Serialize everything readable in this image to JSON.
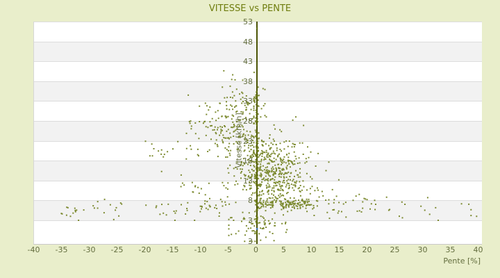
{
  "title": "VITESSE vs PENTE",
  "colors": {
    "background": "#e9eecb",
    "plot_background": "#ffffff",
    "band_stripe": "#f2f2f2",
    "gridline": "#dcdcdc",
    "title_text": "#6f7d0e",
    "label_text": "#646e3f",
    "axis_line": "#4b5404",
    "point": "#6b7b15",
    "special_point": "#4c7fc0"
  },
  "axes": {
    "x": {
      "title": "Pente [%]",
      "ticks": [
        -40,
        -35,
        -30,
        -25,
        -20,
        -15,
        -10,
        -5,
        0,
        5,
        10,
        15,
        20,
        25,
        30,
        35,
        40
      ],
      "range": [
        -40,
        40
      ]
    },
    "y": {
      "title": "Vitesse [km/h]",
      "ticks": [
        53,
        48,
        43,
        38,
        33,
        28,
        23,
        18,
        13,
        8,
        3
      ],
      "bottom_label": "3",
      "range_top": 53,
      "range_bottom": -2.9
    }
  },
  "chart_data": {
    "type": "scatter",
    "title": "VITESSE vs PENTE",
    "xlabel": "Pente [%]",
    "ylabel": "Vitesse [km/h]",
    "xlim": [
      -40,
      40
    ],
    "ylim": [
      -2.9,
      53
    ],
    "grid": "horizontal-bands",
    "legend": "none",
    "n_points_estimate": 1200,
    "description": "Dense olive scatter of speed vs slope, peaked near 0% slope; max speed falls off as |slope| grows; long sparse low-speed tails to -37% and +40%; vertical column of samples at 0% slope; one isolated point near (0,51).",
    "seed": 987654321,
    "clusters": [
      {
        "name": "core-blob",
        "n": 420,
        "x": {
          "type": "gauss",
          "mean": 2.0,
          "sd": 3.2,
          "clip": [
            -7,
            13
          ]
        },
        "y": {
          "type": "gauss",
          "mean": 16.5,
          "sd": 4.5,
          "clip": [
            3,
            29
          ]
        },
        "env": true
      },
      {
        "name": "zero-slope-column",
        "n": 90,
        "x": {
          "type": "gauss",
          "mean": 0,
          "sd": 0.22,
          "clip": [
            -0.45,
            0.45
          ]
        },
        "y": {
          "type": "uniform",
          "clip": [
            2,
            37
          ]
        }
      },
      {
        "name": "left-wing",
        "n": 170,
        "x": {
          "type": "gauss",
          "mean": -4.5,
          "sd": 3.2,
          "clip": [
            -15,
            -0.5
          ]
        },
        "y": {
          "type": "gauss",
          "mean": 26,
          "sd": 4.2,
          "clip": [
            14,
            36.5
          ]
        }
      },
      {
        "name": "upper-peak",
        "n": 48,
        "x": {
          "type": "gauss",
          "mean": -2.0,
          "sd": 2.4,
          "clip": [
            -7,
            1.5
          ]
        },
        "y": {
          "type": "gauss",
          "mean": 33.5,
          "sd": 2.8,
          "clip": [
            28,
            40.8
          ]
        }
      },
      {
        "name": "right-streak",
        "n": 130,
        "x": {
          "type": "uniform",
          "clip": [
            0.5,
            9.8
          ]
        },
        "y": {
          "type": "gauss",
          "mean": 7.2,
          "sd": 0.8,
          "clip": [
            5.2,
            9.5
          ]
        }
      },
      {
        "name": "right-scatter",
        "n": 110,
        "x": {
          "type": "gauss",
          "mean": 5,
          "sd": 3,
          "clip": [
            0.5,
            14.5
          ]
        },
        "y": {
          "type": "gauss",
          "mean": 12,
          "sd": 2.6,
          "clip": [
            7.5,
            18.5
          ]
        },
        "env": true
      },
      {
        "name": "right-tail",
        "n": 46,
        "x": {
          "type": "uniform",
          "clip": [
            9,
            22
          ]
        },
        "y": {
          "type": "gauss",
          "mean": 7.3,
          "sd": 1.7,
          "clip": [
            3.5,
            11
          ]
        }
      },
      {
        "name": "far-right-tail",
        "n": 14,
        "x": {
          "type": "uniform",
          "clip": [
            22,
            39.5
          ]
        },
        "y": {
          "type": "gauss",
          "mean": 5.3,
          "sd": 1.3,
          "clip": [
            3,
            8
          ]
        }
      },
      {
        "name": "left-tail",
        "n": 28,
        "x": {
          "type": "uniform",
          "clip": [
            -36.5,
            -15
          ]
        },
        "y": {
          "type": "gauss",
          "mean": 5.2,
          "sd": 1.3,
          "clip": [
            3,
            8.5
          ]
        }
      },
      {
        "name": "left-lower",
        "n": 55,
        "x": {
          "type": "uniform",
          "clip": [
            -15,
            -1
          ]
        },
        "y": {
          "type": "gauss",
          "mean": 8,
          "sd": 2.9,
          "clip": [
            3,
            14
          ]
        }
      },
      {
        "name": "bottom-center",
        "n": 70,
        "x": {
          "type": "gauss",
          "mean": 0.5,
          "sd": 2.6,
          "clip": [
            -5,
            6.5
          ]
        },
        "y": {
          "type": "gauss",
          "mean": 1.8,
          "sd": 1.9,
          "clip": [
            -2.3,
            5
          ]
        }
      },
      {
        "name": "mid-left-fill",
        "n": 26,
        "x": {
          "type": "uniform",
          "clip": [
            -20,
            -10
          ]
        },
        "y": {
          "type": "gauss",
          "mean": 19,
          "sd": 5.5,
          "clip": [
            7,
            31
          ]
        }
      }
    ],
    "outliers": [
      [
        -35.0,
        4.6
      ],
      [
        -34.2,
        4.3
      ],
      [
        -33.5,
        4.0
      ],
      [
        0.1,
        51.3
      ],
      [
        -5.9,
        40.6
      ],
      [
        -4.3,
        39.6
      ],
      [
        30.8,
        8.7
      ],
      [
        38.6,
        4.2
      ],
      [
        39.6,
        4.0
      ],
      [
        23.4,
        8.8
      ],
      [
        -24.8,
        4.1
      ],
      [
        -28.6,
        7.7
      ],
      [
        17.9,
        9.1
      ],
      [
        16.1,
        3.8
      ],
      [
        -18.5,
        21.0
      ],
      [
        12.5,
        15.5
      ],
      [
        14.8,
        13.2
      ]
    ],
    "special_point": {
      "x": 0.05,
      "y": 0.9,
      "color": "#4c7fc0"
    }
  }
}
